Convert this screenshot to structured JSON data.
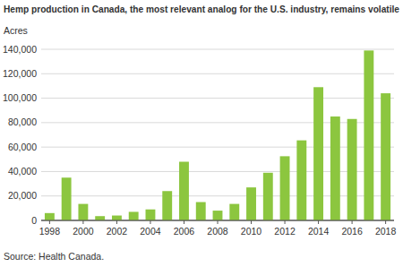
{
  "chart_data": {
    "type": "bar",
    "title": "Hemp production in Canada, the most relevant analog for the U.S. industry, remains volatile",
    "y_label": "Acres",
    "source": "Source: Health Canada.",
    "categories": [
      "1998",
      null,
      "2000",
      null,
      "2002",
      null,
      "2004",
      null,
      "2006",
      null,
      "2008",
      null,
      "2010",
      null,
      "2012",
      null,
      "2014",
      null,
      "2016",
      null,
      "2018"
    ],
    "values": [
      6000,
      35000,
      13500,
      3500,
      4000,
      7000,
      9000,
      24000,
      48000,
      15000,
      8000,
      13500,
      27000,
      39000,
      52500,
      65500,
      109000,
      85000,
      83000,
      139000,
      104000
    ],
    "color": "#8cc63f",
    "ylim": [
      0,
      140000
    ],
    "yticks": [
      0,
      {
        "value": 20000,
        "label": "20,000"
      },
      {
        "value": 40000,
        "label": "40,000"
      },
      {
        "value": 60000,
        "label": "60,000"
      },
      {
        "value": 80000,
        "label": "80,000"
      },
      {
        "value": 100000,
        "label": "100,000"
      },
      {
        "value": 120000,
        "label": "120,000"
      },
      {
        "value": 140000,
        "label": "140,000"
      }
    ],
    "grid": true
  }
}
